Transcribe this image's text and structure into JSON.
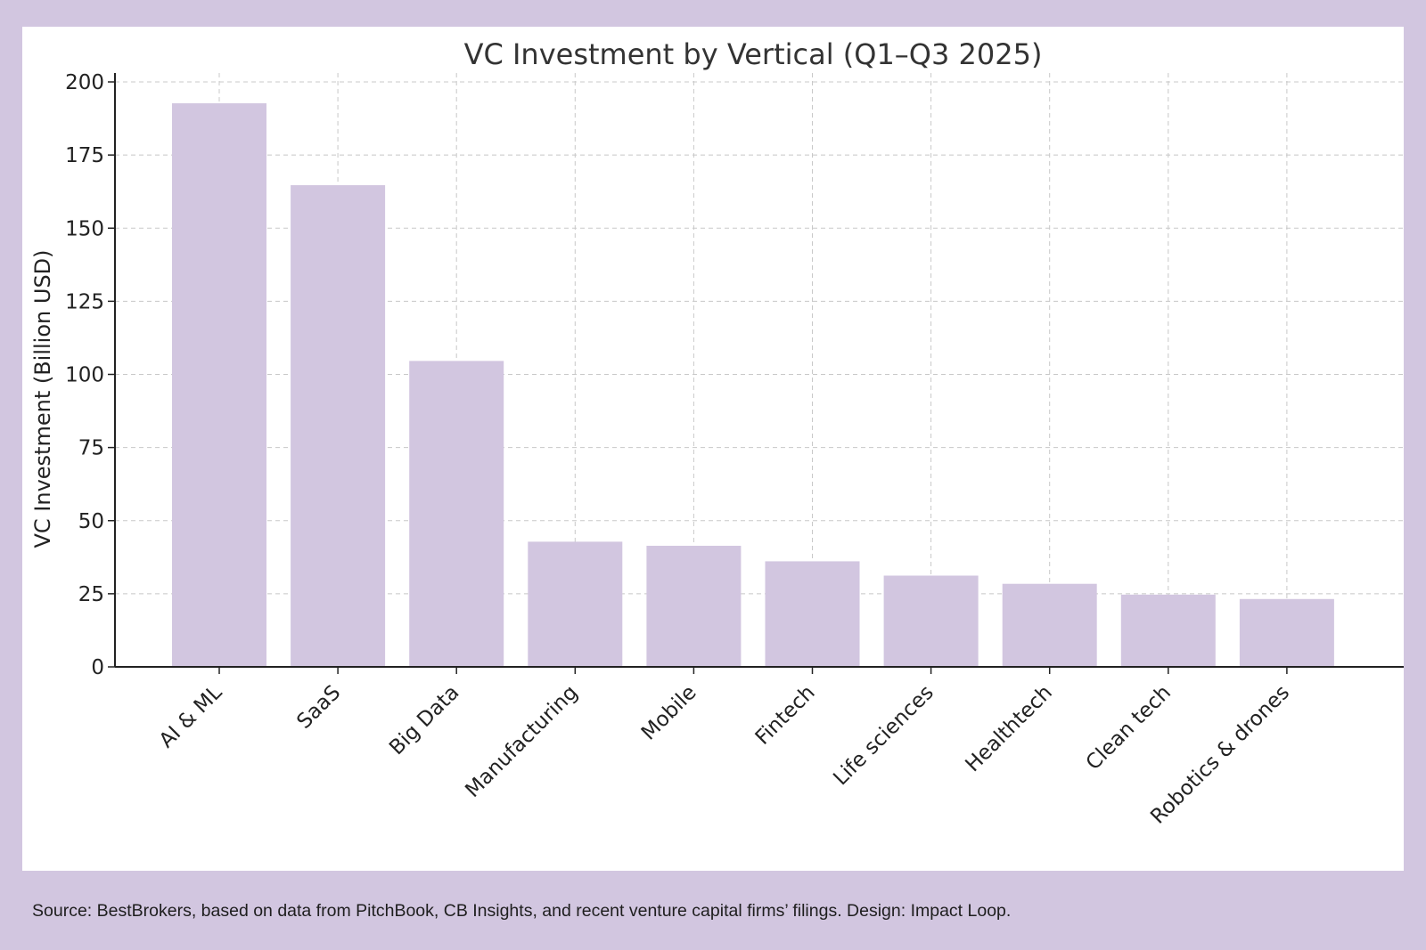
{
  "colors": {
    "page_background": "#d2c6e0",
    "panel_background": "#ffffff",
    "bar": "#d2c6e0",
    "grid": "#c8c8c8",
    "axis": "#222222",
    "text": "#333333"
  },
  "chart_data": {
    "type": "bar",
    "title": "VC Investment by Vertical (Q1–Q3 2025)",
    "xlabel": "",
    "ylabel": "VC Investment (Billion USD)",
    "ylim": [
      0,
      200
    ],
    "yticks": [
      0,
      25,
      50,
      75,
      100,
      125,
      150,
      175,
      200
    ],
    "grid": true,
    "categories": [
      "AI & ML",
      "SaaS",
      "Big Data",
      "Manufacturing",
      "Mobile",
      "Fintech",
      "Life sciences",
      "Healthtech",
      "Clean tech",
      "Robotics & drones"
    ],
    "values": [
      192.7,
      164.7,
      104.6,
      42.8,
      41.4,
      36.1,
      31.2,
      28.4,
      24.7,
      23.2
    ]
  },
  "footer": {
    "source": "Source: BestBrokers, based on data from PitchBook, CB Insights, and recent venture capital firms’ filings. Design: Impact Loop."
  }
}
